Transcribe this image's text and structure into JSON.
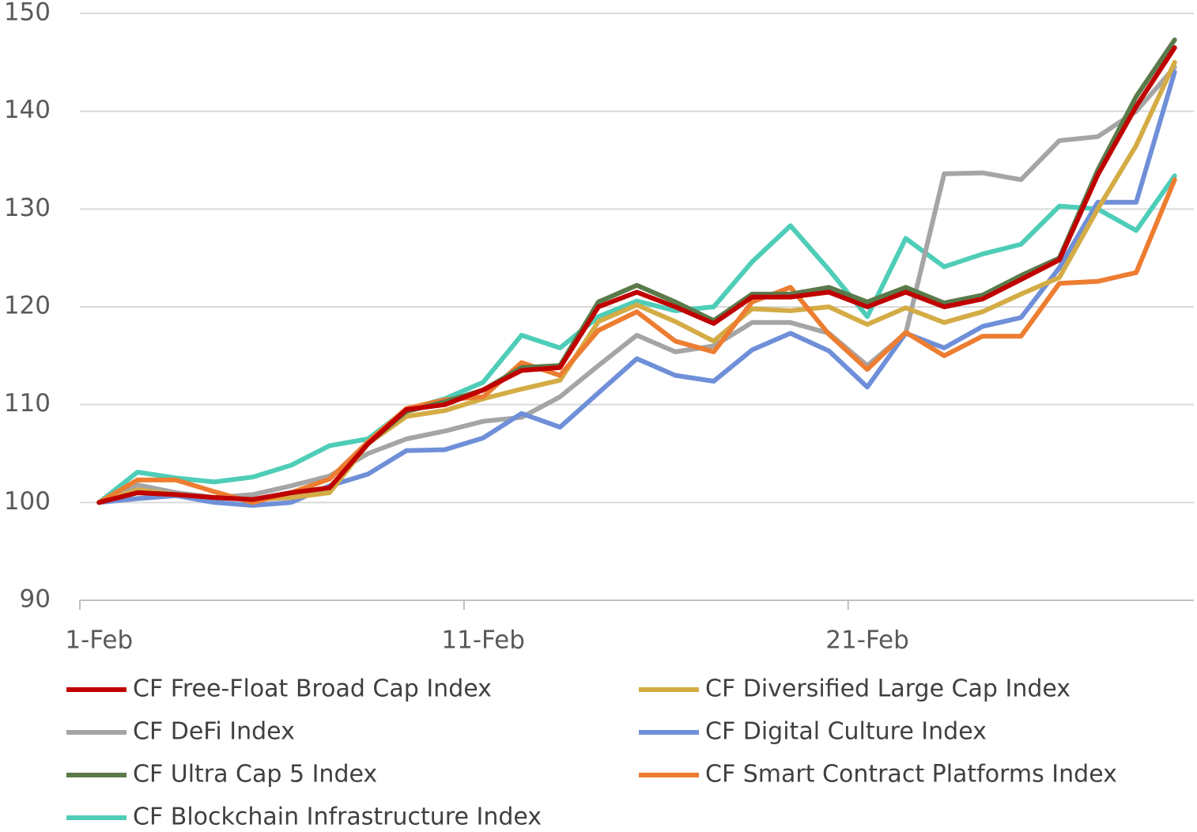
{
  "chart_data": {
    "type": "line",
    "categories": [
      "1-Feb",
      null,
      null,
      null,
      null,
      null,
      null,
      null,
      null,
      null,
      "11-Feb",
      null,
      null,
      null,
      null,
      null,
      null,
      null,
      null,
      null,
      "21-Feb",
      null,
      null,
      null,
      null,
      null,
      null,
      null,
      null
    ],
    "ylim": [
      90,
      150
    ],
    "yticks": [
      90,
      100,
      110,
      120,
      130,
      140,
      150
    ],
    "grid": true,
    "legend": "bottom",
    "series": [
      {
        "name": "CF Free-Float Broad Cap Index",
        "color": "#c00000",
        "values": [
          100,
          101,
          100.8,
          100.5,
          100.3,
          101,
          101.5,
          106,
          109.5,
          110,
          111.5,
          113.5,
          113.8,
          120,
          121.5,
          120,
          118.3,
          121,
          121,
          121.5,
          120,
          121.5,
          120,
          120.8,
          122.8,
          124.8,
          133.5,
          140.5,
          146.5
        ]
      },
      {
        "name": "CF Diversified Large Cap Index",
        "color": "#d4ac45",
        "values": [
          100,
          101.3,
          100.8,
          100.5,
          100.3,
          100.5,
          101,
          106,
          108.8,
          109.4,
          110.6,
          111.6,
          112.5,
          118.5,
          120.2,
          118.5,
          116.5,
          119.8,
          119.6,
          120,
          118.2,
          119.9,
          118.4,
          119.5,
          121.3,
          123,
          130,
          136.5,
          145
        ]
      },
      {
        "name": "CF DeFi Index",
        "color": "#a5a5a5",
        "values": [
          100,
          101.8,
          101,
          100.5,
          100.8,
          101.7,
          102.7,
          105,
          106.5,
          107.3,
          108.3,
          108.7,
          110.8,
          114,
          117.1,
          115.4,
          116,
          118.4,
          118.4,
          117.3,
          114,
          117.3,
          133.6,
          133.7,
          133,
          137,
          137.4,
          140,
          144.5
        ]
      },
      {
        "name": "CF Digital Culture Index",
        "color": "#6f8fd8",
        "values": [
          100,
          100.4,
          100.7,
          100,
          99.7,
          100,
          101.7,
          102.9,
          105.3,
          105.4,
          106.6,
          109.1,
          107.7,
          111.2,
          114.7,
          113,
          112.4,
          115.6,
          117.3,
          115.5,
          111.8,
          117.3,
          115.8,
          118,
          118.9,
          124,
          130.7,
          130.7,
          144
        ]
      },
      {
        "name": "CF Ultra Cap 5 Index",
        "color": "#5a7a4a",
        "values": [
          100,
          101,
          100.8,
          100.5,
          100.3,
          101,
          101.5,
          106,
          109.3,
          110.3,
          111.5,
          113.8,
          114,
          120.5,
          122.2,
          120.5,
          118.6,
          121.3,
          121.3,
          122,
          120.5,
          122,
          120.4,
          121.2,
          123.2,
          125,
          134,
          141.5,
          147.3
        ]
      },
      {
        "name": "CF Smart Contract Platforms Index",
        "color": "#ed7d31",
        "values": [
          100,
          102.3,
          102.3,
          101.1,
          100,
          101,
          102.4,
          106.2,
          109.6,
          110.5,
          110.8,
          114.3,
          113,
          117.6,
          119.5,
          116.5,
          115.4,
          120.5,
          122,
          117.2,
          113.6,
          117.4,
          115,
          117,
          117,
          122.4,
          122.6,
          123.5,
          133
        ]
      },
      {
        "name": "CF Blockchain Infrastructure Index",
        "color": "#4ecdb8",
        "values": [
          100,
          103.1,
          102.5,
          102.1,
          102.6,
          103.8,
          105.8,
          106.5,
          109.5,
          110.6,
          112.3,
          117.1,
          115.8,
          119,
          120.6,
          119.6,
          120,
          124.6,
          128.3,
          123.8,
          119,
          127,
          124.1,
          125.4,
          126.4,
          130.3,
          130,
          127.8,
          133.4
        ]
      }
    ]
  }
}
